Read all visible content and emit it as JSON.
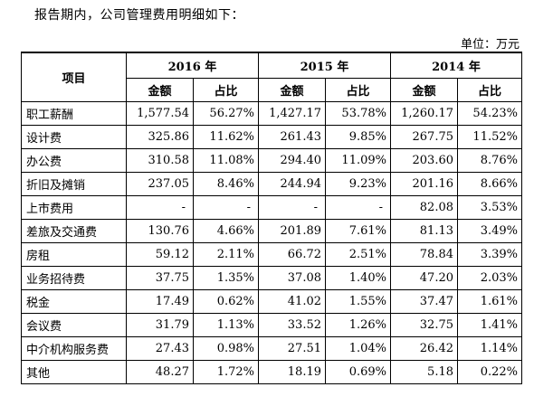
{
  "intro": "报告期内，公司管理费用明细如下：",
  "unit": "单位：万元",
  "header": {
    "item": "项目",
    "years": [
      "2016 年",
      "2015 年",
      "2014 年"
    ],
    "amount": "金额",
    "ratio": "占比"
  },
  "rows": [
    {
      "name": "职工薪酬",
      "v": [
        "1,577.54",
        "56.27%",
        "1,427.17",
        "53.78%",
        "1,260.17",
        "54.23%"
      ]
    },
    {
      "name": "设计费",
      "v": [
        "325.86",
        "11.62%",
        "261.43",
        "9.85%",
        "267.75",
        "11.52%"
      ]
    },
    {
      "name": "办公费",
      "v": [
        "310.58",
        "11.08%",
        "294.40",
        "11.09%",
        "203.60",
        "8.76%"
      ]
    },
    {
      "name": "折旧及摊销",
      "v": [
        "237.05",
        "8.46%",
        "244.94",
        "9.23%",
        "201.16",
        "8.66%"
      ]
    },
    {
      "name": "上市费用",
      "v": [
        "-",
        "-",
        "-",
        "-",
        "82.08",
        "3.53%"
      ]
    },
    {
      "name": "差旅及交通费",
      "v": [
        "130.76",
        "4.66%",
        "201.89",
        "7.61%",
        "81.13",
        "3.49%"
      ]
    },
    {
      "name": "房租",
      "v": [
        "59.12",
        "2.11%",
        "66.72",
        "2.51%",
        "78.84",
        "3.39%"
      ]
    },
    {
      "name": "业务招待费",
      "v": [
        "37.75",
        "1.35%",
        "37.08",
        "1.40%",
        "47.20",
        "2.03%"
      ]
    },
    {
      "name": "税金",
      "v": [
        "17.49",
        "0.62%",
        "41.02",
        "1.55%",
        "37.47",
        "1.61%"
      ]
    },
    {
      "name": "会议费",
      "v": [
        "31.79",
        "1.13%",
        "33.52",
        "1.26%",
        "32.75",
        "1.41%"
      ]
    },
    {
      "name": "中介机构服务费",
      "v": [
        "27.43",
        "0.98%",
        "27.51",
        "1.04%",
        "26.42",
        "1.14%"
      ]
    },
    {
      "name": "其他",
      "v": [
        "48.27",
        "1.72%",
        "18.19",
        "0.69%",
        "5.18",
        "0.22%"
      ]
    }
  ]
}
